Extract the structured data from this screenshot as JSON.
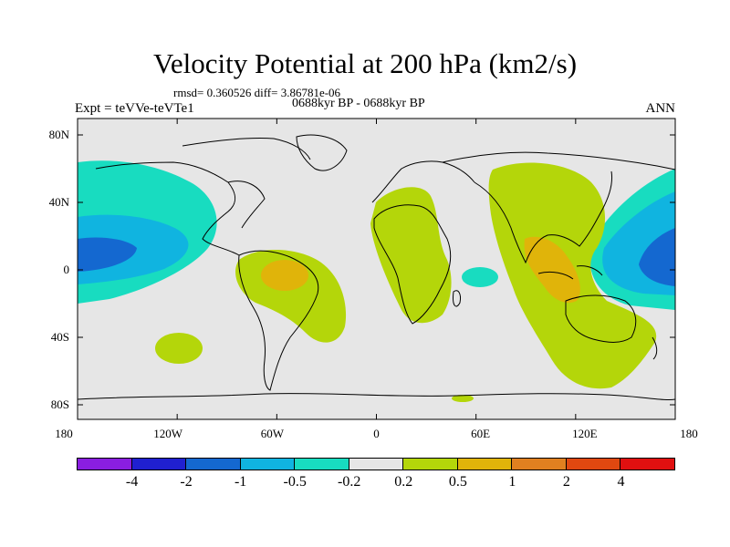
{
  "title": "Velocity Potential at 200 hPa (km2/s)",
  "stats": "rmsd= 0.360526 diff= 3.86781e-06",
  "experiment": "Expt = teVVe-teVTe1",
  "period": "0688kyr BP - 0688kyr BP",
  "season": "ANN",
  "x_ticks": [
    "180",
    "120W",
    "60W",
    "0",
    "60E",
    "120E",
    "180"
  ],
  "y_ticks": [
    "80N",
    "40N",
    "0",
    "40S",
    "80S"
  ],
  "colorbar": {
    "colors": [
      "#8a1ee0",
      "#2020d0",
      "#1468d0",
      "#10b4e0",
      "#18dcc0",
      "#e6e6e6",
      "#b4d60a",
      "#e0b40a",
      "#e08020",
      "#e04810",
      "#e01010"
    ],
    "labels": [
      "-4",
      "-2",
      "-1",
      "-0.5",
      "-0.2",
      "0.2",
      "0.5",
      "1",
      "2",
      "4"
    ]
  },
  "colors": {
    "background_field": "#e6e6e6",
    "coast": "#000000"
  }
}
